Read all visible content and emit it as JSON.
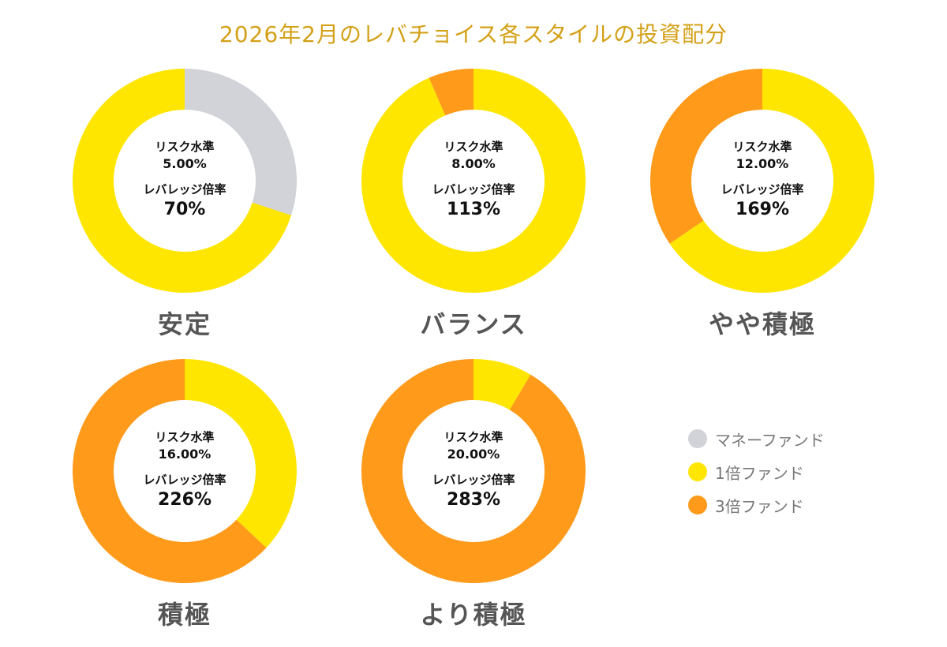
{
  "title": "2026年2月のレバチョイス各スタイルの投資配分",
  "center_labels": {
    "risk": "リスク水準",
    "leverage": "レバレッジ倍率"
  },
  "colors": {
    "money": "#D1D3D8",
    "fund1x": "#FFE600",
    "fund3x": "#FF9A1A",
    "title": "#D4A017"
  },
  "legend": [
    {
      "label": "マネーファンド",
      "color": "#D1D3D8"
    },
    {
      "label": "1倍ファンド",
      "color": "#FFE600"
    },
    {
      "label": "3倍ファンド",
      "color": "#FF9A1A"
    }
  ],
  "chart_data": {
    "type": "pie",
    "series_names": [
      "マネーファンド",
      "1倍ファンド",
      "3倍ファンド"
    ],
    "charts": [
      {
        "name": "安定",
        "risk": "5.00%",
        "leverage": "70%",
        "shares": {
          "money": 30,
          "fund1x": 70,
          "fund3x": 0
        }
      },
      {
        "name": "バランス",
        "risk": "8.00%",
        "leverage": "113%",
        "shares": {
          "money": 0,
          "fund1x": 93.5,
          "fund3x": 6.5
        }
      },
      {
        "name": "やや積極",
        "risk": "12.00%",
        "leverage": "169%",
        "shares": {
          "money": 0,
          "fund1x": 65.5,
          "fund3x": 34.5
        }
      },
      {
        "name": "積極",
        "risk": "16.00%",
        "leverage": "226%",
        "shares": {
          "money": 0,
          "fund1x": 37,
          "fund3x": 63
        }
      },
      {
        "name": "より積極",
        "risk": "20.00%",
        "leverage": "283%",
        "shares": {
          "money": 0,
          "fund1x": 8.5,
          "fund3x": 91.5
        }
      }
    ]
  }
}
